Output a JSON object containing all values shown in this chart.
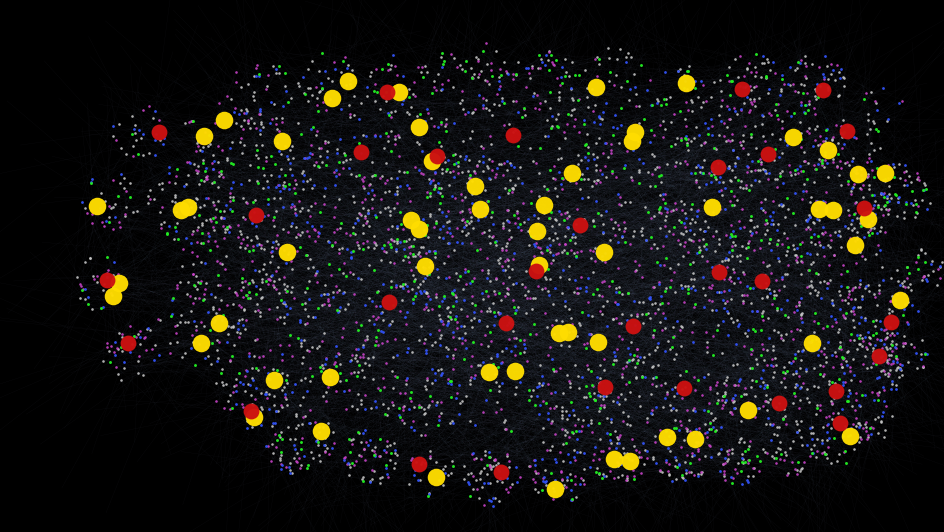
{
  "background_color": "#000000",
  "edge_color": "#8090b0",
  "edge_alpha": 0.08,
  "edge_linewidth": 0.25,
  "node_colors": {
    "white": "#c8c8c8",
    "magenta": "#cc44cc",
    "blue": "#3355ff",
    "green": "#22ee22",
    "red": "#cc1111",
    "yellow": "#ffdd00"
  },
  "random_seed": 42,
  "figsize": [
    9.45,
    5.32
  ],
  "dpi": 100
}
